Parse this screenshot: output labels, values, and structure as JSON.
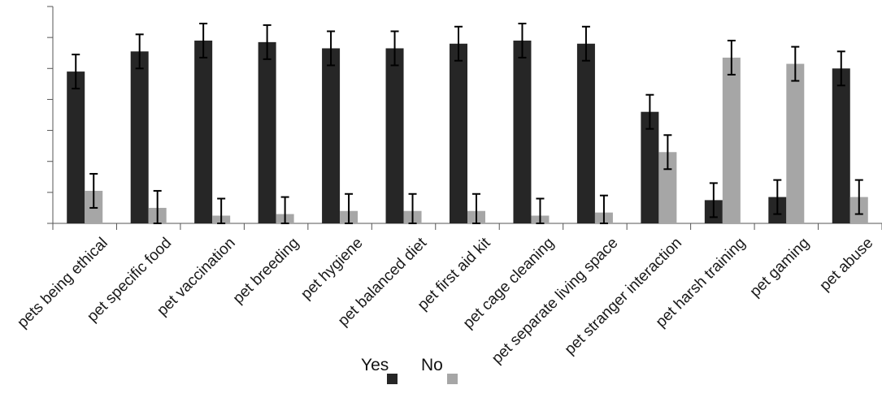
{
  "chart_data": {
    "type": "bar",
    "title": "",
    "xlabel": "",
    "ylabel": "",
    "ylim": [
      0,
      7
    ],
    "y_ticks": [
      0,
      1,
      2,
      3,
      4,
      5,
      6,
      7
    ],
    "y_tick_labels_shown": false,
    "grid": false,
    "legend_position": "bottom-center",
    "categories": [
      "pets being ethical",
      "pet specific food",
      "pet vaccination",
      "pet breeding",
      "pet hygiene",
      "pet balanced diet",
      "pet first aid kit",
      "pet cage cleaning",
      "pet separate living space",
      "pet stranger interaction",
      "pet harsh training",
      "pet gaming",
      "pet abuse"
    ],
    "series": [
      {
        "name": "Yes",
        "color": "#262626",
        "values": [
          4.9,
          5.55,
          5.9,
          5.85,
          5.65,
          5.65,
          5.8,
          5.9,
          5.8,
          3.6,
          0.75,
          0.85,
          5.0
        ],
        "errors": [
          0.55,
          0.55,
          0.55,
          0.55,
          0.55,
          0.55,
          0.55,
          0.55,
          0.55,
          0.55,
          0.55,
          0.55,
          0.55
        ]
      },
      {
        "name": "No",
        "color": "#a6a6a6",
        "values": [
          1.05,
          0.5,
          0.25,
          0.3,
          0.4,
          0.4,
          0.4,
          0.25,
          0.35,
          2.3,
          5.35,
          5.15,
          0.85
        ],
        "errors": [
          0.55,
          0.55,
          0.55,
          0.55,
          0.55,
          0.55,
          0.55,
          0.55,
          0.55,
          0.55,
          0.55,
          0.55,
          0.55
        ]
      }
    ]
  }
}
